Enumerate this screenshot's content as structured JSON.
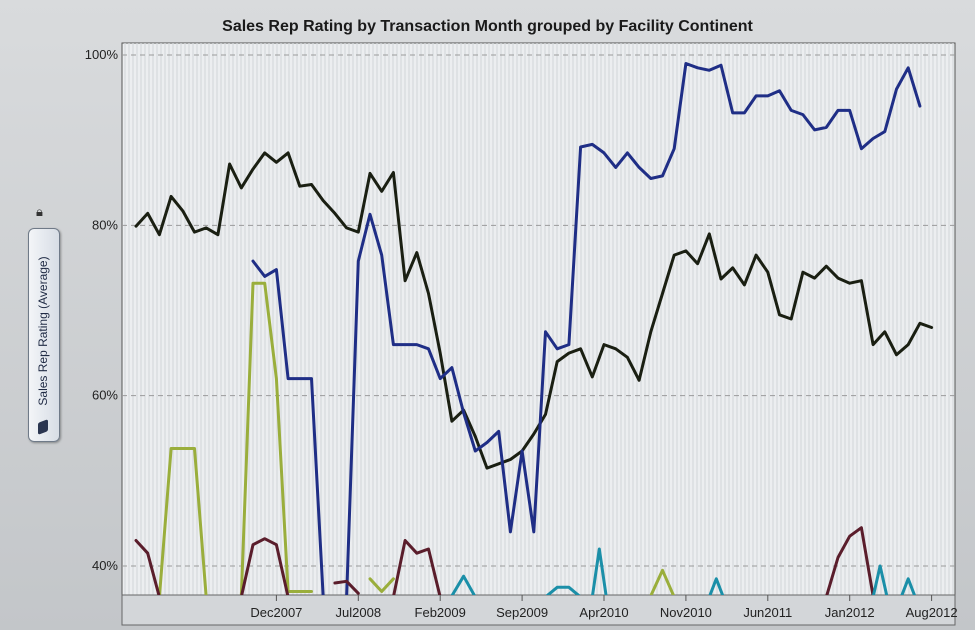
{
  "chart_data": {
    "type": "line",
    "title": "Sales Rep Rating by Transaction Month grouped by Facility Continent",
    "ylabel": "Sales Rep Rating (Average)",
    "xlabel": "",
    "ylim": [
      36,
      100
    ],
    "x_ticks": [
      {
        "label": "Dec2007",
        "x": 12
      },
      {
        "label": "Jul2008",
        "x": 19
      },
      {
        "label": "Feb2009",
        "x": 26
      },
      {
        "label": "Sep2009",
        "x": 33
      },
      {
        "label": "Apr2010",
        "x": 40
      },
      {
        "label": "Nov2010",
        "x": 47
      },
      {
        "label": "Jun2011",
        "x": 54
      },
      {
        "label": "Jan2012",
        "x": 61
      },
      {
        "label": "Aug2012",
        "x": 68
      }
    ],
    "xlim": [
      0,
      74
    ],
    "y_ticks": [
      {
        "label": "40%",
        "value": 40
      },
      {
        "label": "60%",
        "value": 60
      },
      {
        "label": "80%",
        "value": 80
      },
      {
        "label": "100%",
        "value": 100
      }
    ],
    "grid": true,
    "series": [
      {
        "color": "#1a1f12",
        "segments": [
          [
            [
              0,
              79.9
            ],
            [
              1,
              81.4
            ],
            [
              2,
              78.9
            ],
            [
              3,
              83.4
            ],
            [
              4,
              81.7
            ],
            [
              5,
              79.2
            ],
            [
              6,
              79.7
            ],
            [
              7,
              78.9
            ],
            [
              8,
              87.2
            ],
            [
              9,
              84.4
            ],
            [
              10,
              86.6
            ],
            [
              11,
              88.5
            ],
            [
              12,
              87.4
            ],
            [
              13,
              88.5
            ],
            [
              14,
              84.6
            ],
            [
              15,
              84.8
            ],
            [
              16,
              82.9
            ],
            [
              17,
              81.4
            ],
            [
              18,
              79.7
            ],
            [
              19,
              79.2
            ],
            [
              20,
              86.1
            ],
            [
              21,
              84.0
            ],
            [
              22,
              86.2
            ],
            [
              23,
              73.5
            ],
            [
              24,
              76.8
            ],
            [
              25,
              72.0
            ],
            [
              26,
              65.0
            ],
            [
              27,
              57.0
            ],
            [
              28,
              58.3
            ],
            [
              29,
              55.2
            ],
            [
              30,
              51.5
            ],
            [
              31,
              52.0
            ],
            [
              32,
              52.5
            ],
            [
              33,
              53.5
            ],
            [
              34,
              55.5
            ],
            [
              35,
              57.8
            ],
            [
              36,
              64.0
            ],
            [
              37,
              65.0
            ],
            [
              38,
              65.5
            ],
            [
              39,
              62.2
            ],
            [
              40,
              66.0
            ],
            [
              41,
              65.5
            ],
            [
              42,
              64.5
            ],
            [
              43,
              61.8
            ],
            [
              44,
              67.5
            ],
            [
              45,
              72.0
            ],
            [
              46,
              76.5
            ],
            [
              47,
              77.0
            ],
            [
              48,
              75.5
            ],
            [
              49,
              79.0
            ],
            [
              50,
              73.7
            ],
            [
              51,
              75.0
            ],
            [
              52,
              73.0
            ],
            [
              53,
              76.5
            ],
            [
              54,
              74.5
            ],
            [
              55,
              69.5
            ],
            [
              56,
              69.0
            ],
            [
              57,
              74.5
            ],
            [
              58,
              73.8
            ],
            [
              59,
              75.2
            ],
            [
              60,
              73.8
            ],
            [
              61,
              73.2
            ],
            [
              62,
              73.5
            ],
            [
              63,
              66.0
            ],
            [
              64,
              67.5
            ],
            [
              65,
              64.8
            ],
            [
              66,
              66.0
            ],
            [
              67,
              68.5
            ],
            [
              68,
              68.0
            ]
          ]
        ]
      },
      {
        "color": "#1f2e86",
        "segments": [
          [
            [
              10,
              75.8
            ],
            [
              11,
              74.0
            ],
            [
              12,
              74.8
            ],
            [
              13,
              62.0
            ],
            [
              14,
              62.0
            ],
            [
              15,
              62.0
            ],
            [
              16,
              36.0
            ]
          ],
          [
            [
              18,
              36.0
            ],
            [
              19,
              75.8
            ],
            [
              20,
              81.3
            ],
            [
              21,
              76.5
            ],
            [
              22,
              66.0
            ],
            [
              23,
              66.0
            ],
            [
              24,
              66.0
            ],
            [
              25,
              65.5
            ],
            [
              26,
              62.0
            ],
            [
              27,
              63.3
            ],
            [
              28,
              58.0
            ],
            [
              29,
              53.5
            ],
            [
              30,
              54.5
            ],
            [
              31,
              55.8
            ],
            [
              32,
              44.0
            ],
            [
              33,
              53.5
            ],
            [
              34,
              44.0
            ],
            [
              35,
              67.5
            ],
            [
              36,
              65.5
            ],
            [
              37,
              66.0
            ],
            [
              38,
              89.2
            ],
            [
              39,
              89.5
            ],
            [
              40,
              88.5
            ],
            [
              41,
              86.8
            ],
            [
              42,
              88.5
            ],
            [
              43,
              86.8
            ],
            [
              44,
              85.5
            ],
            [
              45,
              85.8
            ],
            [
              46,
              89.0
            ],
            [
              47,
              99.0
            ],
            [
              48,
              98.5
            ],
            [
              49,
              98.2
            ],
            [
              50,
              98.8
            ],
            [
              51,
              93.2
            ],
            [
              52,
              93.2
            ],
            [
              53,
              95.2
            ],
            [
              54,
              95.2
            ],
            [
              55,
              95.8
            ],
            [
              56,
              93.5
            ],
            [
              57,
              93.0
            ],
            [
              58,
              91.2
            ],
            [
              59,
              91.5
            ],
            [
              60,
              93.5
            ],
            [
              61,
              93.5
            ],
            [
              62,
              89.0
            ],
            [
              63,
              90.2
            ],
            [
              64,
              91.0
            ],
            [
              65,
              96.0
            ],
            [
              66,
              98.5
            ],
            [
              67,
              94.0
            ]
          ]
        ]
      },
      {
        "color": "#9aae3c",
        "segments": [
          [
            [
              2,
              36.0
            ],
            [
              3,
              53.8
            ],
            [
              4,
              53.8
            ],
            [
              5,
              53.8
            ],
            [
              6,
              36.0
            ]
          ],
          [
            [
              9,
              36.0
            ],
            [
              10,
              73.2
            ],
            [
              11,
              73.2
            ],
            [
              12,
              62.0
            ],
            [
              13,
              37.0
            ],
            [
              14,
              37.0
            ],
            [
              15,
              37.0
            ]
          ],
          [
            [
              20,
              38.5
            ],
            [
              21,
              37.0
            ],
            [
              22,
              38.5
            ]
          ],
          [
            [
              44,
              36.5
            ],
            [
              45,
              39.5
            ],
            [
              46,
              36.0
            ]
          ]
        ]
      },
      {
        "color": "#5a1d2b",
        "segments": [
          [
            [
              0,
              43.0
            ],
            [
              1,
              41.5
            ],
            [
              2,
              36.0
            ]
          ],
          [
            [
              9,
              36.0
            ],
            [
              10,
              42.5
            ],
            [
              11,
              43.2
            ],
            [
              12,
              42.5
            ],
            [
              13,
              36.0
            ]
          ],
          [
            [
              17,
              38.0
            ],
            [
              18,
              38.2
            ],
            [
              19,
              36.8
            ]
          ],
          [
            [
              22,
              36.0
            ],
            [
              23,
              43.0
            ],
            [
              24,
              41.5
            ],
            [
              25,
              42.0
            ],
            [
              26,
              36.0
            ]
          ],
          [
            [
              59,
              36.0
            ],
            [
              60,
              41.0
            ],
            [
              61,
              43.5
            ],
            [
              62,
              44.5
            ],
            [
              63,
              36.5
            ]
          ]
        ]
      },
      {
        "color": "#1b8fa8",
        "segments": [
          [
            [
              27,
              36.5
            ],
            [
              28,
              38.8
            ],
            [
              29,
              36.0
            ]
          ],
          [
            [
              35,
              36.0
            ],
            [
              36,
              37.5
            ],
            [
              37,
              37.5
            ],
            [
              38,
              36.0
            ]
          ],
          [
            [
              39,
              36.0
            ],
            [
              39.6,
              42.0
            ],
            [
              40.2,
              36.0
            ]
          ],
          [
            [
              49,
              36.0
            ],
            [
              49.6,
              38.5
            ],
            [
              50.2,
              36.0
            ]
          ],
          [
            [
              63,
              36.0
            ],
            [
              63.6,
              40.0
            ],
            [
              64.2,
              36.0
            ]
          ],
          [
            [
              65.4,
              36.0
            ],
            [
              66,
              38.5
            ],
            [
              66.6,
              36.0
            ]
          ]
        ]
      }
    ]
  }
}
